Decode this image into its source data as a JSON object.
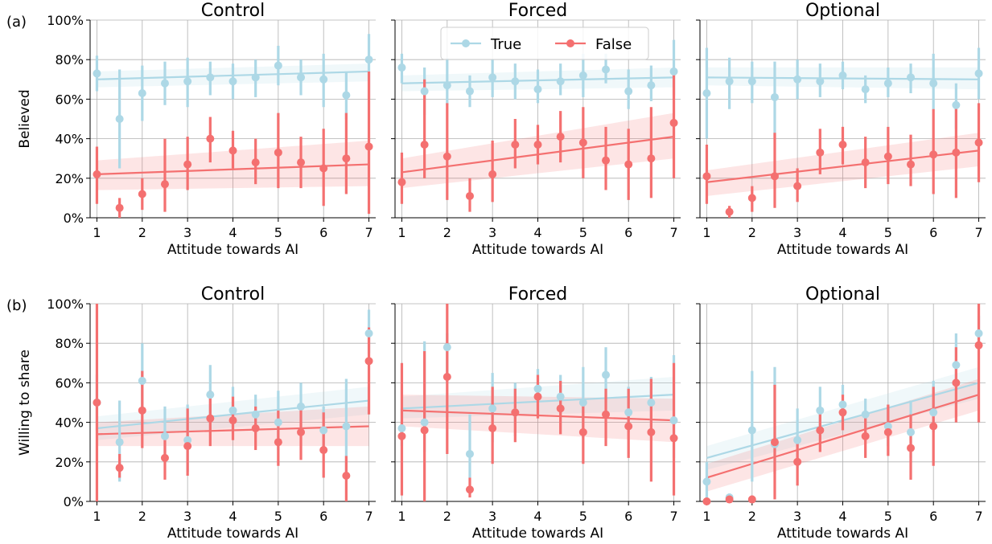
{
  "figure": {
    "row_labels": [
      "(a)",
      "(b)"
    ],
    "legend": [
      "True",
      "False"
    ]
  },
  "colors": {
    "true": "#add8e6",
    "false": "#f47070",
    "grid": "#b0b0b0"
  },
  "chart_data": [
    {
      "type": "scatter",
      "row": 0,
      "col": 0,
      "title": "Control",
      "xlabel": "Attitude towards AI",
      "ylabel": "Believed",
      "xlim": [
        0.85,
        7.15
      ],
      "ylim": [
        0,
        100
      ],
      "xticks": [
        1,
        2,
        3,
        4,
        5,
        6,
        7
      ],
      "yticks": [
        0,
        20,
        40,
        60,
        80,
        100
      ],
      "ytick_labels": [
        "0%",
        "20%",
        "40%",
        "60%",
        "80%",
        "100%"
      ],
      "grid": true,
      "x": [
        1,
        1.5,
        2,
        2.5,
        3,
        3.5,
        4,
        4.5,
        5,
        5.5,
        6,
        6.5,
        7
      ],
      "series": [
        {
          "name": "True",
          "values": [
            73,
            50,
            63,
            68,
            69,
            71,
            69,
            71,
            77,
            71,
            70,
            62,
            80
          ],
          "err_low": [
            64,
            25,
            49,
            57,
            56,
            62,
            60,
            61,
            67,
            62,
            56,
            50,
            60
          ],
          "err_high": [
            82,
            75,
            77,
            79,
            81,
            79,
            78,
            80,
            87,
            80,
            83,
            74,
            93
          ],
          "fit": [
            70,
            74
          ],
          "band": [
            [
              66,
              74
            ],
            [
              69,
              78
            ]
          ]
        },
        {
          "name": "False",
          "values": [
            22,
            5,
            12,
            17,
            27,
            40,
            34,
            28,
            33,
            28,
            25,
            30,
            36
          ],
          "err_low": [
            7,
            0,
            4,
            3,
            14,
            28,
            25,
            17,
            15,
            15,
            6,
            12,
            2
          ],
          "err_high": [
            36,
            10,
            20,
            40,
            41,
            51,
            44,
            40,
            53,
            41,
            45,
            53,
            74
          ],
          "fit": [
            22,
            27
          ],
          "band": [
            [
              14,
              29
            ],
            [
              16,
              39
            ]
          ]
        }
      ]
    },
    {
      "type": "scatter",
      "row": 0,
      "col": 1,
      "title": "Forced",
      "xlabel": "Attitude towards AI",
      "ylabel": "",
      "xlim": [
        0.85,
        7.15
      ],
      "ylim": [
        0,
        100
      ],
      "xticks": [
        1,
        2,
        3,
        4,
        5,
        6,
        7
      ],
      "yticks": [
        0,
        20,
        40,
        60,
        80,
        100
      ],
      "grid": true,
      "x": [
        1,
        1.5,
        2,
        2.5,
        3,
        3.5,
        4,
        4.5,
        5,
        5.5,
        6,
        6.5,
        7
      ],
      "series": [
        {
          "name": "True",
          "values": [
            76,
            64,
            67,
            64,
            71,
            69,
            65,
            69,
            72,
            75,
            64,
            67,
            74
          ],
          "err_low": [
            68,
            52,
            57,
            56,
            61,
            60,
            58,
            62,
            61,
            68,
            55,
            59,
            62
          ],
          "err_high": [
            83,
            76,
            81,
            72,
            80,
            78,
            75,
            78,
            83,
            83,
            75,
            77,
            90
          ],
          "fit": [
            68,
            71
          ],
          "band": [
            [
              64,
              72
            ],
            [
              66,
              76
            ]
          ]
        },
        {
          "name": "False",
          "values": [
            18,
            37,
            31,
            11,
            22,
            37,
            37,
            41,
            38,
            29,
            27,
            30,
            48
          ],
          "err_low": [
            7,
            20,
            9,
            3,
            8,
            25,
            27,
            28,
            20,
            14,
            9,
            10,
            20
          ],
          "err_high": [
            33,
            70,
            58,
            20,
            39,
            50,
            47,
            54,
            56,
            46,
            45,
            56,
            75
          ],
          "fit": [
            23,
            41
          ],
          "band": [
            [
              15,
              30
            ],
            [
              30,
              53
            ]
          ]
        }
      ]
    },
    {
      "type": "scatter",
      "row": 0,
      "col": 2,
      "title": "Optional",
      "xlabel": "Attitude towards AI",
      "ylabel": "",
      "xlim": [
        0.85,
        7.15
      ],
      "ylim": [
        0,
        100
      ],
      "xticks": [
        1,
        2,
        3,
        4,
        5,
        6,
        7
      ],
      "yticks": [
        0,
        20,
        40,
        60,
        80,
        100
      ],
      "grid": true,
      "x": [
        1,
        1.5,
        2,
        2.5,
        3,
        3.5,
        4,
        4.5,
        5,
        5.5,
        6,
        6.5,
        7
      ],
      "series": [
        {
          "name": "True",
          "values": [
            63,
            69,
            69,
            61,
            70,
            69,
            72,
            65,
            68,
            71,
            68,
            57,
            73
          ],
          "err_low": [
            40,
            55,
            58,
            40,
            60,
            61,
            65,
            58,
            61,
            63,
            55,
            45,
            60
          ],
          "err_high": [
            86,
            81,
            79,
            79,
            80,
            78,
            79,
            72,
            76,
            78,
            83,
            68,
            86
          ],
          "fit": [
            71,
            70
          ],
          "band": [
            [
              67,
              76
            ],
            [
              65,
              76
            ]
          ]
        },
        {
          "name": "False",
          "values": [
            21,
            3,
            10,
            21,
            16,
            33,
            37,
            28,
            31,
            27,
            32,
            33,
            38
          ],
          "err_low": [
            7,
            0,
            3,
            5,
            8,
            22,
            27,
            15,
            17,
            16,
            12,
            10,
            18
          ],
          "err_high": [
            37,
            6,
            16,
            43,
            25,
            45,
            46,
            41,
            46,
            42,
            55,
            57,
            58
          ],
          "fit": [
            18,
            34
          ],
          "band": [
            [
              11,
              24
            ],
            [
              26,
              43
            ]
          ]
        }
      ]
    },
    {
      "type": "scatter",
      "row": 1,
      "col": 0,
      "title": "Control",
      "xlabel": "Attitude towards AI",
      "ylabel": "Willing to share",
      "xlim": [
        0.85,
        7.15
      ],
      "ylim": [
        0,
        100
      ],
      "xticks": [
        1,
        2,
        3,
        4,
        5,
        6,
        7
      ],
      "yticks": [
        0,
        20,
        40,
        60,
        80,
        100
      ],
      "ytick_labels": [
        "0%",
        "20%",
        "40%",
        "60%",
        "80%",
        "100%"
      ],
      "grid": true,
      "x": [
        1,
        1.5,
        2,
        2.5,
        3,
        3.5,
        4,
        4.5,
        5,
        5.5,
        6,
        6.5,
        7
      ],
      "series": [
        {
          "name": "True",
          "values": [
            50,
            30,
            61,
            33,
            31,
            54,
            46,
            44,
            40,
            48,
            36,
            38,
            85
          ],
          "err_low": [
            36,
            10,
            44,
            20,
            15,
            40,
            35,
            34,
            26,
            37,
            26,
            15,
            75
          ],
          "err_high": [
            64,
            51,
            80,
            48,
            49,
            69,
            58,
            54,
            56,
            60,
            48,
            62,
            97
          ],
          "fit": [
            37,
            51
          ],
          "band": [
            [
              31,
              43
            ],
            [
              44,
              58
            ]
          ]
        },
        {
          "name": "False",
          "values": [
            50,
            17,
            46,
            22,
            28,
            42,
            41,
            37,
            30,
            35,
            26,
            13,
            71
          ],
          "err_low": [
            0,
            12,
            27,
            11,
            13,
            28,
            31,
            26,
            18,
            21,
            12,
            0,
            44
          ],
          "err_high": [
            100,
            24,
            66,
            35,
            47,
            56,
            53,
            48,
            46,
            48,
            45,
            23,
            88
          ],
          "fit": [
            34,
            38
          ],
          "band": [
            [
              28,
              40
            ],
            [
              28,
              48
            ]
          ]
        }
      ]
    },
    {
      "type": "scatter",
      "row": 1,
      "col": 1,
      "title": "Forced",
      "xlabel": "Attitude towards AI",
      "ylabel": "",
      "xlim": [
        0.85,
        7.15
      ],
      "ylim": [
        0,
        100
      ],
      "xticks": [
        1,
        2,
        3,
        4,
        5,
        6,
        7
      ],
      "yticks": [
        0,
        20,
        40,
        60,
        80,
        100
      ],
      "grid": true,
      "x": [
        1,
        1.5,
        2,
        2.5,
        3,
        3.5,
        4,
        4.5,
        5,
        5.5,
        6,
        6.5,
        7
      ],
      "series": [
        {
          "name": "True",
          "values": [
            37,
            40,
            78,
            24,
            47,
            45,
            57,
            53,
            50,
            64,
            45,
            50,
            41
          ],
          "err_low": [
            28,
            25,
            60,
            12,
            30,
            33,
            48,
            44,
            32,
            50,
            35,
            38,
            22
          ],
          "err_high": [
            47,
            81,
            85,
            44,
            65,
            60,
            67,
            64,
            68,
            78,
            58,
            63,
            74
          ],
          "fit": [
            47,
            54
          ],
          "band": [
            [
              42,
              53
            ],
            [
              46,
              63
            ]
          ]
        },
        {
          "name": "False",
          "values": [
            33,
            36,
            63,
            6,
            37,
            45,
            53,
            47,
            35,
            44,
            38,
            35,
            32
          ],
          "err_low": [
            3,
            0,
            24,
            2,
            19,
            30,
            42,
            34,
            19,
            28,
            22,
            10,
            3
          ],
          "err_high": [
            70,
            76,
            100,
            12,
            58,
            57,
            64,
            61,
            50,
            57,
            57,
            62,
            70
          ],
          "fit": [
            46,
            41
          ],
          "band": [
            [
              38,
              54
            ],
            [
              30,
              52
            ]
          ]
        }
      ]
    },
    {
      "type": "scatter",
      "row": 1,
      "col": 2,
      "title": "Optional",
      "xlabel": "Attitude towards AI",
      "ylabel": "",
      "xlim": [
        0.85,
        7.15
      ],
      "ylim": [
        0,
        100
      ],
      "xticks": [
        1,
        2,
        3,
        4,
        5,
        6,
        7
      ],
      "yticks": [
        0,
        20,
        40,
        60,
        80,
        100
      ],
      "grid": true,
      "x": [
        1,
        1.5,
        2,
        2.5,
        3,
        3.5,
        4,
        4.5,
        5,
        5.5,
        6,
        6.5,
        7
      ],
      "series": [
        {
          "name": "True",
          "values": [
            10,
            2,
            36,
            29,
            31,
            46,
            49,
            44,
            38,
            35,
            45,
            69,
            85
          ],
          "err_low": [
            0,
            0,
            10,
            14,
            17,
            36,
            40,
            36,
            28,
            22,
            35,
            60,
            78
          ],
          "err_high": [
            20,
            4,
            66,
            68,
            47,
            58,
            59,
            52,
            48,
            51,
            61,
            85,
            94
          ],
          "fit": [
            22,
            60
          ],
          "band": [
            [
              16,
              28
            ],
            [
              52,
              68
            ]
          ]
        },
        {
          "name": "False",
          "values": [
            0,
            1,
            1,
            30,
            20,
            36,
            45,
            33,
            35,
            27,
            38,
            60,
            79
          ],
          "err_low": [
            0,
            0,
            0,
            1,
            8,
            25,
            36,
            22,
            23,
            11,
            18,
            40,
            40
          ],
          "err_high": [
            0,
            2,
            3,
            59,
            32,
            46,
            54,
            44,
            49,
            44,
            58,
            78,
            100
          ],
          "fit": [
            12,
            54
          ],
          "band": [
            [
              5,
              19
            ],
            [
              46,
              62
            ]
          ]
        }
      ]
    }
  ]
}
